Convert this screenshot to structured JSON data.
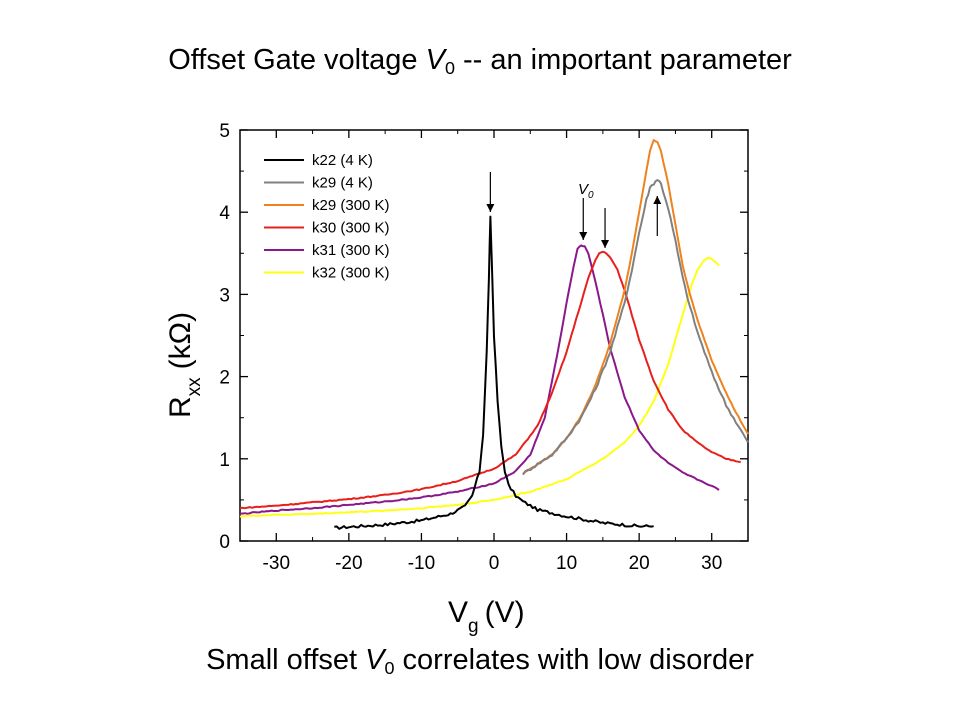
{
  "slide": {
    "title_pre": "Offset Gate voltage ",
    "title_var": "V",
    "title_sub": "0",
    "title_post": " -- an important parameter",
    "caption_pre": "Small offset ",
    "caption_var": "V",
    "caption_sub": "0",
    "caption_post": " correlates with low disorder"
  },
  "chart_data": {
    "type": "line",
    "xlabel_main": "V",
    "xlabel_sub": "g",
    "xlabel_unit": "(V)",
    "ylabel_main": "R",
    "ylabel_sub": "xx",
    "ylabel_unit": "(kΩ)",
    "xlim": [
      -35,
      35
    ],
    "ylim": [
      0,
      5
    ],
    "xticks": [
      -30,
      -20,
      -10,
      0,
      10,
      20,
      30
    ],
    "yticks": [
      0,
      1,
      2,
      3,
      4,
      5
    ],
    "grid": false,
    "legend_position": "top-left",
    "series": [
      {
        "name": "k22 (4 K)",
        "color": "#000000",
        "x": [
          -22,
          -15,
          -10,
          -6,
          -4,
          -3,
          -2,
          -1.5,
          -1,
          -0.7,
          -0.5,
          -0.3,
          0,
          0.5,
          1,
          1.5,
          2,
          3,
          4,
          6,
          10,
          15,
          20,
          22
        ],
        "y": [
          0.16,
          0.2,
          0.25,
          0.33,
          0.42,
          0.55,
          0.85,
          1.3,
          2.3,
          3.2,
          3.93,
          3.4,
          2.5,
          1.7,
          1.15,
          0.85,
          0.68,
          0.55,
          0.48,
          0.38,
          0.3,
          0.22,
          0.18,
          0.18
        ]
      },
      {
        "name": "k29 (4 K)",
        "color": "#808080",
        "x": [
          4,
          8,
          10,
          12,
          14,
          16,
          18,
          19,
          20,
          21,
          21.5,
          22,
          22.5,
          23,
          24,
          25,
          26,
          27,
          28,
          29,
          30,
          31,
          32,
          33,
          35
        ],
        "y": [
          0.82,
          1.05,
          1.25,
          1.5,
          1.85,
          2.3,
          2.9,
          3.3,
          3.75,
          4.15,
          4.3,
          4.35,
          4.4,
          4.35,
          4.05,
          3.65,
          3.2,
          2.85,
          2.55,
          2.3,
          2.05,
          1.85,
          1.65,
          1.5,
          1.2
        ]
      },
      {
        "name": "k29 (300 K)",
        "color": "#f0821e",
        "x": [
          4,
          8,
          10,
          12,
          14,
          16,
          18,
          19,
          20,
          21,
          21.5,
          22,
          22.5,
          23,
          24,
          25,
          26,
          27,
          28,
          29,
          30,
          31,
          32,
          33,
          35
        ],
        "y": [
          0.82,
          1.05,
          1.25,
          1.52,
          1.9,
          2.4,
          3.05,
          3.5,
          4.0,
          4.5,
          4.75,
          4.88,
          4.85,
          4.75,
          4.35,
          3.85,
          3.35,
          3.0,
          2.7,
          2.45,
          2.2,
          2.0,
          1.8,
          1.62,
          1.3
        ]
      },
      {
        "name": "k30 (300 K)",
        "color": "#e8201c",
        "x": [
          -35,
          -30,
          -25,
          -20,
          -15,
          -10,
          -5,
          0,
          3,
          6,
          8,
          10,
          12,
          13,
          14,
          14.5,
          15,
          15.5,
          16,
          17,
          18,
          19,
          20,
          22,
          24,
          26,
          28,
          30,
          32,
          34
        ],
        "y": [
          0.4,
          0.43,
          0.47,
          0.51,
          0.56,
          0.63,
          0.73,
          0.88,
          1.05,
          1.4,
          1.8,
          2.3,
          2.9,
          3.2,
          3.42,
          3.5,
          3.52,
          3.5,
          3.45,
          3.3,
          3.05,
          2.75,
          2.45,
          1.95,
          1.6,
          1.35,
          1.2,
          1.08,
          1.0,
          0.96
        ]
      },
      {
        "name": "k31 (300 K)",
        "color": "#8b188b",
        "x": [
          -35,
          -30,
          -25,
          -20,
          -15,
          -10,
          -5,
          0,
          3,
          5,
          7,
          9,
          10,
          11,
          11.5,
          12,
          12.5,
          13,
          14,
          15,
          16,
          18,
          20,
          22,
          24,
          26,
          28,
          30,
          31
        ],
        "y": [
          0.33,
          0.37,
          0.4,
          0.44,
          0.48,
          0.53,
          0.6,
          0.7,
          0.85,
          1.05,
          1.5,
          2.4,
          2.9,
          3.35,
          3.55,
          3.6,
          3.58,
          3.5,
          3.15,
          2.75,
          2.35,
          1.75,
          1.35,
          1.1,
          0.95,
          0.83,
          0.75,
          0.67,
          0.62
        ]
      },
      {
        "name": "k32 (300 K)",
        "color": "#ffff14",
        "x": [
          -35,
          -30,
          -25,
          -20,
          -15,
          -10,
          -5,
          0,
          5,
          10,
          15,
          18,
          20,
          22,
          24,
          25,
          26,
          27,
          28,
          29,
          29.5,
          30,
          31
        ],
        "y": [
          0.3,
          0.32,
          0.33,
          0.35,
          0.37,
          0.4,
          0.44,
          0.5,
          0.6,
          0.75,
          1.0,
          1.2,
          1.4,
          1.7,
          2.15,
          2.45,
          2.75,
          3.05,
          3.3,
          3.42,
          3.45,
          3.43,
          3.35
        ]
      }
    ],
    "annotations": [
      {
        "text": "V",
        "sub": "0"
      }
    ]
  }
}
